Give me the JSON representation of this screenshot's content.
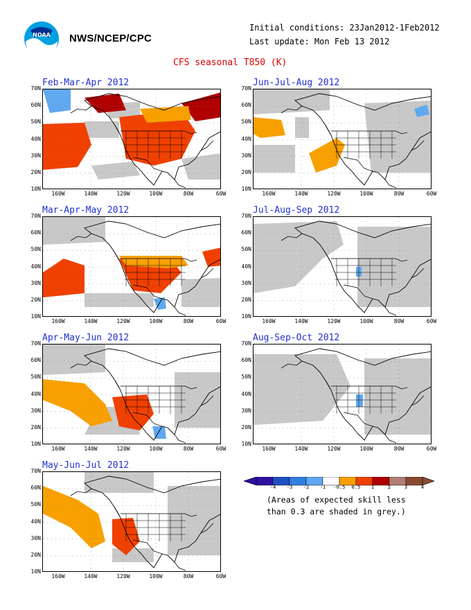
{
  "header": {
    "org": "NWS/NCEP/CPC",
    "initial_conditions": "Initial conditions: 23Jan2012-1Feb2012",
    "last_update": "Last update: Mon Feb 13 2012",
    "title": "CFS seasonal T850 (K)"
  },
  "lat_labels": [
    "70N",
    "60N",
    "50N",
    "40N",
    "30N",
    "20N",
    "10N"
  ],
  "lon_labels": [
    "160W",
    "140W",
    "120W",
    "100W",
    "80W",
    "60W"
  ],
  "panels": [
    {
      "title": "Feb-Mar-Apr 2012",
      "icon": "temperature-anomaly-map"
    },
    {
      "title": "Jun-Jul-Aug 2012",
      "icon": "temperature-anomaly-map"
    },
    {
      "title": "Mar-Apr-May 2012",
      "icon": "temperature-anomaly-map"
    },
    {
      "title": "Jul-Aug-Sep 2012",
      "icon": "temperature-anomaly-map"
    },
    {
      "title": "Apr-May-Jun 2012",
      "icon": "temperature-anomaly-map"
    },
    {
      "title": "Aug-Sep-Oct 2012",
      "icon": "temperature-anomaly-map"
    },
    {
      "title": "May-Jun-Jul 2012",
      "icon": "temperature-anomaly-map"
    }
  ],
  "colorbar": {
    "labels": [
      "-4",
      "-3",
      "-2",
      "-1",
      "-0.5",
      "0.5",
      "1",
      "2",
      "3",
      "4"
    ],
    "colors": [
      "#3010a0",
      "#2050c0",
      "#3080e0",
      "#60a8f0",
      "#ffffff",
      "#f8a000",
      "#f04000",
      "#b00000",
      "#b08070",
      "#8a4a30"
    ]
  },
  "note": {
    "line1": "(Areas of expected skill less",
    "line2": "than 0.3 are shaded in grey.)"
  },
  "logo_text": "NOAA"
}
